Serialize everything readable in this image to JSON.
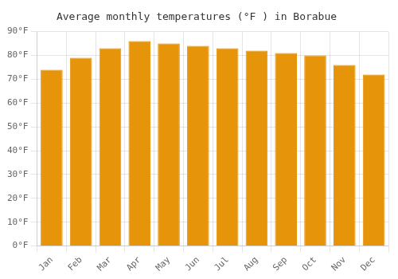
{
  "chart_data": {
    "type": "bar",
    "title": "Average monthly temperatures (°F ) in Borabue",
    "categories": [
      "Jan",
      "Feb",
      "Mar",
      "Apr",
      "May",
      "Jun",
      "Jul",
      "Aug",
      "Sep",
      "Oct",
      "Nov",
      "Dec"
    ],
    "values": [
      74,
      79,
      83,
      86,
      85,
      84,
      83,
      82,
      81,
      80,
      76,
      72
    ],
    "color": "#E6940A",
    "ylim": [
      0,
      90
    ],
    "yticks": [
      {
        "value": 0,
        "label": "0°F"
      },
      {
        "value": 10,
        "label": "10°F"
      },
      {
        "value": 20,
        "label": "20°F"
      },
      {
        "value": 30,
        "label": "30°F"
      },
      {
        "value": 40,
        "label": "40°F"
      },
      {
        "value": 50,
        "label": "50°F"
      },
      {
        "value": 60,
        "label": "60°F"
      },
      {
        "value": 70,
        "label": "70°F"
      },
      {
        "value": 80,
        "label": "80°F"
      },
      {
        "value": 90,
        "label": "90°F"
      }
    ],
    "grid": true
  }
}
